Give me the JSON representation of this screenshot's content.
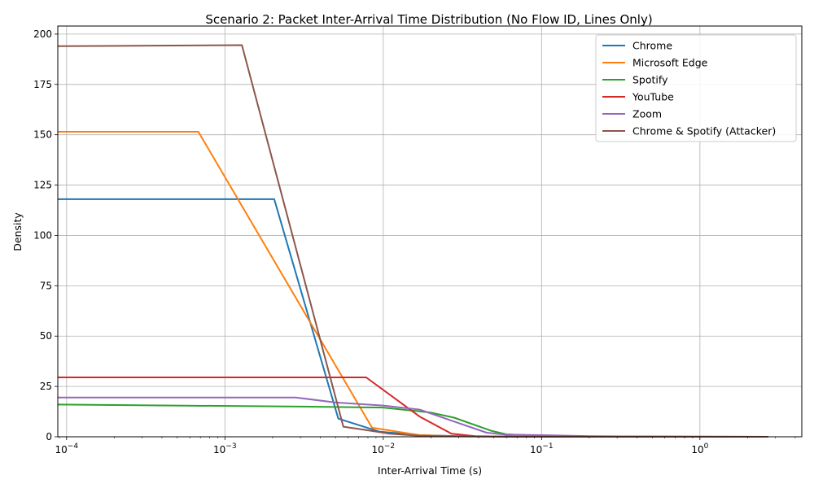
{
  "chart_data": {
    "type": "line",
    "title": "Scenario 2: Packet Inter-Arrival Time Distribution (No Flow ID, Lines Only)",
    "xlabel": "Inter-Arrival Time (s)",
    "ylabel": "Density",
    "xscale": "log",
    "xlim": [
      8.8e-05,
      4.4
    ],
    "ylim": [
      0,
      204
    ],
    "grid": true,
    "legend_position": "top-right",
    "x_ticks": [
      {
        "value": 0.0001,
        "base": "10",
        "exp": "−4"
      },
      {
        "value": 0.001,
        "base": "10",
        "exp": "−3"
      },
      {
        "value": 0.01,
        "base": "10",
        "exp": "−2"
      },
      {
        "value": 0.1,
        "base": "10",
        "exp": "−1"
      },
      {
        "value": 1,
        "base": "10",
        "exp": "0"
      }
    ],
    "y_ticks": [
      0,
      25,
      50,
      75,
      100,
      125,
      150,
      175,
      200
    ],
    "series": [
      {
        "name": "Chrome",
        "color": "#1f77b4",
        "x": [
          8.8e-05,
          0.00205,
          0.0052,
          0.0095,
          0.017,
          0.03,
          0.06,
          0.1,
          0.5,
          2.7
        ],
        "y": [
          118,
          118,
          9,
          2.5,
          0.8,
          0.3,
          0.1,
          0.05,
          0.02,
          0.01
        ]
      },
      {
        "name": "Microsoft Edge",
        "color": "#ff7f0e",
        "x": [
          8.8e-05,
          0.00068,
          0.0085,
          0.017,
          0.03,
          0.06,
          0.3,
          2.7
        ],
        "y": [
          151.5,
          151.5,
          4.5,
          0.8,
          0.2,
          0.05,
          0.01,
          0.005
        ]
      },
      {
        "name": "Spotify",
        "color": "#2ca02c",
        "x": [
          8.8e-05,
          0.003,
          0.01,
          0.02,
          0.028,
          0.048,
          0.06,
          0.1,
          0.2,
          1.0,
          2.7
        ],
        "y": [
          16,
          15,
          14.5,
          12,
          9.5,
          3,
          1.2,
          0.5,
          0.2,
          0.05,
          0.01
        ]
      },
      {
        "name": "YouTube",
        "color": "#d62728",
        "x": [
          8.8e-05,
          0.0078,
          0.017,
          0.027,
          0.038,
          0.06,
          0.1,
          1.0,
          2.7
        ],
        "y": [
          29.5,
          29.5,
          10,
          1.5,
          0.3,
          0.1,
          0.05,
          0.01,
          0.005
        ]
      },
      {
        "name": "Zoom",
        "color": "#9467bd",
        "x": [
          8.8e-05,
          0.0028,
          0.005,
          0.01,
          0.017,
          0.027,
          0.045,
          0.06,
          0.1,
          0.2,
          1.0,
          2.7
        ],
        "y": [
          19.5,
          19.5,
          17,
          15.5,
          13.5,
          8,
          2,
          1,
          0.8,
          0.3,
          0.1,
          0.02
        ]
      },
      {
        "name": "Chrome & Spotify (Attacker)",
        "color": "#8c564b",
        "x": [
          8.8e-05,
          0.00128,
          0.0056,
          0.0075,
          0.011,
          0.017,
          0.03,
          0.06,
          0.2,
          1.0,
          2.7
        ],
        "y": [
          194,
          194.5,
          5,
          3.5,
          1.5,
          0.5,
          0.2,
          0.1,
          0.05,
          0.02,
          0.01
        ]
      }
    ]
  }
}
